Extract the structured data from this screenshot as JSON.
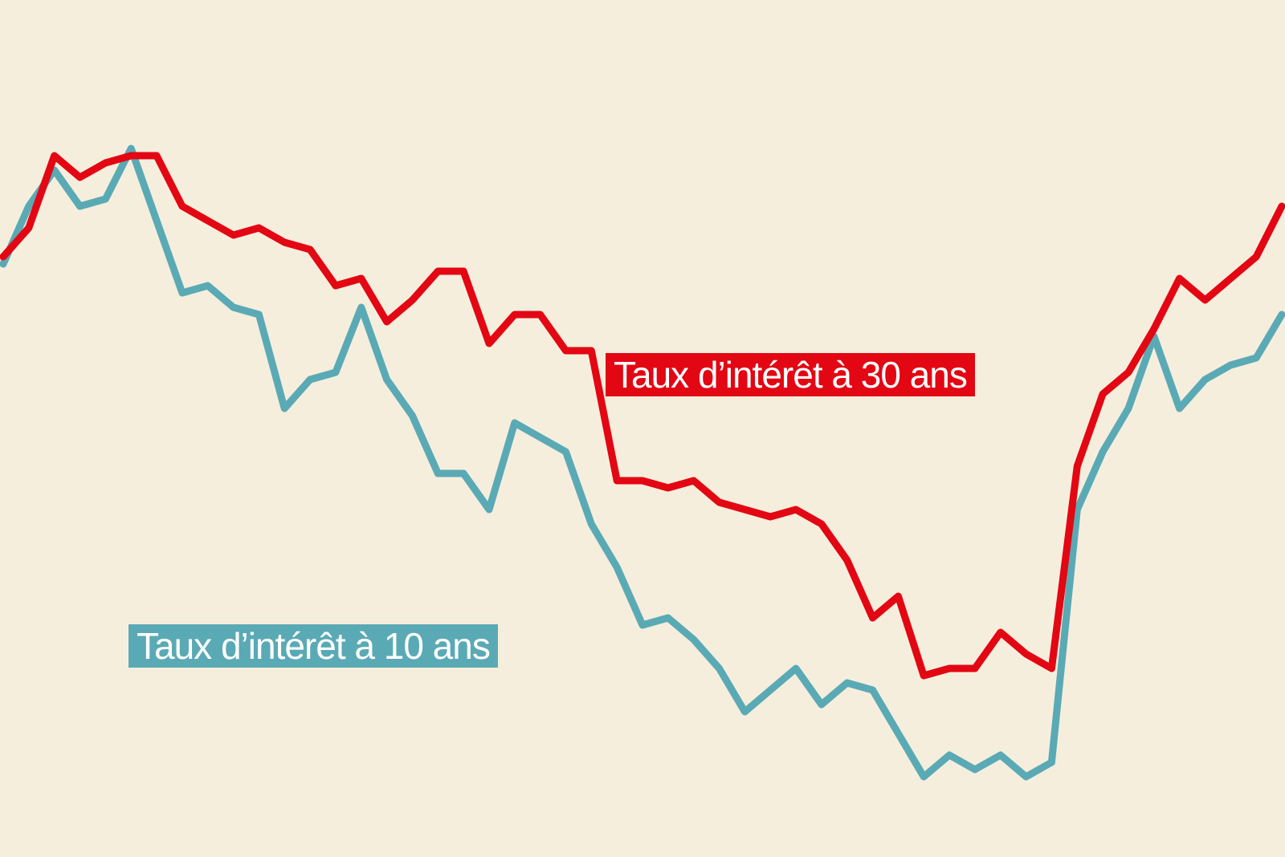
{
  "chart_data": {
    "type": "line",
    "title": "",
    "xlabel": "",
    "ylabel": "",
    "grid": false,
    "axes_visible": false,
    "legend": "inline labels",
    "ylim": [
      0,
      100
    ],
    "x": [
      0,
      2,
      4,
      6,
      8,
      10,
      12,
      14,
      16,
      18,
      20,
      22,
      24,
      26,
      28,
      30,
      32,
      34,
      36,
      38,
      40,
      42,
      44,
      46,
      48,
      50,
      52,
      54,
      56,
      58,
      60,
      62,
      64,
      66,
      68,
      70,
      72,
      74,
      76,
      78,
      80,
      82,
      84,
      86,
      88,
      90,
      92,
      94,
      96,
      98,
      100
    ],
    "series": [
      {
        "name": "Taux d’intérêt à 30 ans",
        "color": "#e30613",
        "values": [
          75,
          79,
          89,
          86,
          88,
          89,
          89,
          82,
          80,
          78,
          79,
          77,
          76,
          71,
          72,
          66,
          69,
          73,
          73,
          63,
          67,
          67,
          62,
          62,
          44,
          44,
          43,
          44,
          41,
          40,
          39,
          40,
          38,
          33,
          25,
          28,
          17,
          18,
          18,
          23,
          20,
          18,
          46,
          56,
          59,
          65,
          72,
          69,
          72,
          75,
          82
        ]
      },
      {
        "name": "Taux d’intérêt à 10 ans",
        "color": "#5aaab5",
        "values": [
          74,
          82,
          87,
          82,
          83,
          90,
          80,
          70,
          71,
          68,
          67,
          54,
          58,
          59,
          68,
          58,
          53,
          45,
          45,
          40,
          52,
          50,
          48,
          38,
          32,
          24,
          25,
          22,
          18,
          12,
          15,
          18,
          13,
          16,
          15,
          9,
          3,
          6,
          4,
          6,
          3,
          5,
          40,
          48,
          54,
          64,
          54,
          58,
          60,
          61,
          67
        ]
      }
    ]
  }
}
